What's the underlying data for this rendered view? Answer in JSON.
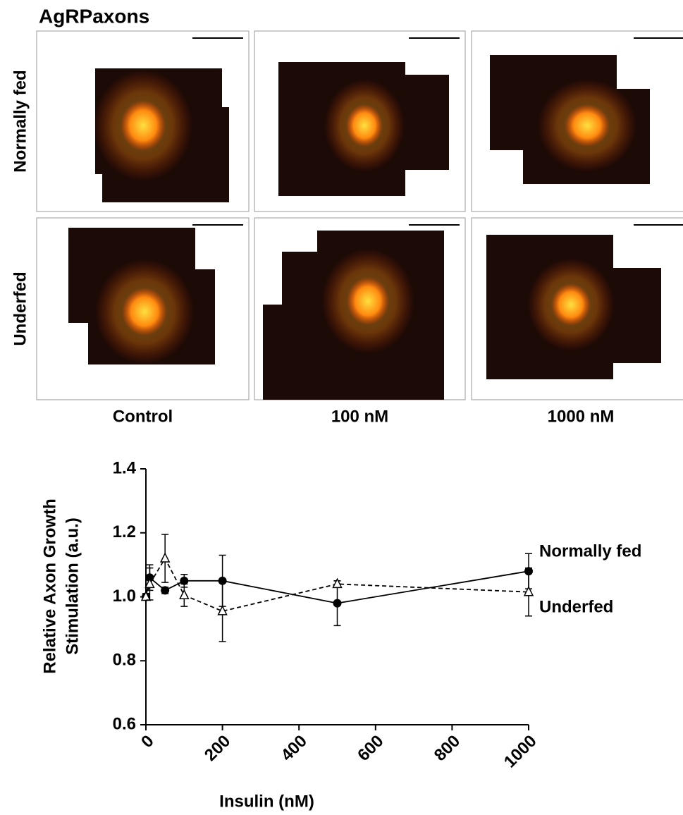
{
  "figure_panel": {
    "title": "AgRPaxons",
    "rows": [
      "Normally fed",
      "Underfed"
    ],
    "columns": [
      "Control",
      "100 nM",
      "1000 nM"
    ]
  },
  "chart_data": {
    "type": "line",
    "xlabel": "Insulin (nM)",
    "ylabel": [
      "Relative Axon Growth",
      "Stimulation (a.u.)"
    ],
    "x": [
      0,
      10,
      50,
      100,
      200,
      500,
      1000
    ],
    "series": [
      {
        "name": "Normally fed",
        "color": "#000000",
        "style": "solid",
        "marker": "circle",
        "values": [
          1.0,
          1.06,
          1.02,
          1.05,
          1.05,
          0.98,
          1.08
        ],
        "errors": [
          0.01,
          0.04,
          0.01,
          0.02,
          0.08,
          0.07,
          0.055
        ]
      },
      {
        "name": "Underfed",
        "color": "#000000",
        "style": "dashed",
        "marker": "triangle",
        "values": [
          1.0,
          1.04,
          1.12,
          1.005,
          0.955,
          1.04,
          1.015
        ],
        "errors": [
          0.01,
          0.05,
          0.075,
          0.035,
          0.095,
          0.01,
          0.075
        ]
      }
    ],
    "xlim": [
      0,
      1000
    ],
    "xticks": [
      0,
      200,
      400,
      600,
      800,
      1000
    ],
    "ylim": [
      0.6,
      1.4
    ],
    "yticks": [
      0.6,
      0.8,
      {
        "value": 1.0,
        "label": "1.0"
      },
      1.2,
      1.4
    ],
    "grid": false
  }
}
